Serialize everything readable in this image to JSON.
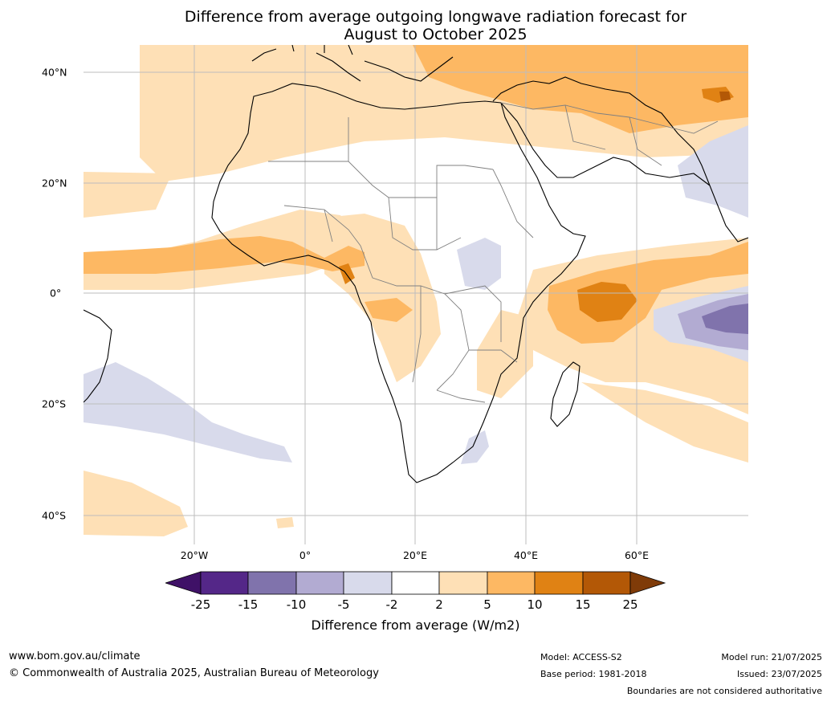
{
  "title": {
    "line1": "Difference from average outgoing longwave radiation forecast for",
    "line2": "August to October 2025"
  },
  "map": {
    "lat_labels": [
      "40°N",
      "20°N",
      "0°",
      "20°S",
      "40°S"
    ],
    "lon_labels": [
      "20°W",
      "0°",
      "20°E",
      "40°E",
      "60°E"
    ]
  },
  "colorbar": {
    "tick_labels": [
      "-25",
      "-15",
      "-10",
      "-5",
      "-2",
      "2",
      "5",
      "10",
      "15",
      "25"
    ],
    "colors": [
      "#3f1167",
      "#542788",
      "#8073ac",
      "#b2abd2",
      "#d8daeb",
      "#ffffff",
      "#fee0b6",
      "#fdb863",
      "#e08214",
      "#b35806",
      "#7f3b08"
    ],
    "title": "Difference from average (W/m2)"
  },
  "footer": {
    "website": "www.bom.gov.au/climate",
    "copyright": "© Commonwealth of Australia 2025, Australian Bureau of Meteorology",
    "model": "Model: ACCESS-S2",
    "base_period": "Base period: 1981-2018",
    "model_run": "Model run: 21/07/2025",
    "issued": "Issued: 23/07/2025",
    "disclaimer": "Boundaries are not considered authoritative"
  }
}
